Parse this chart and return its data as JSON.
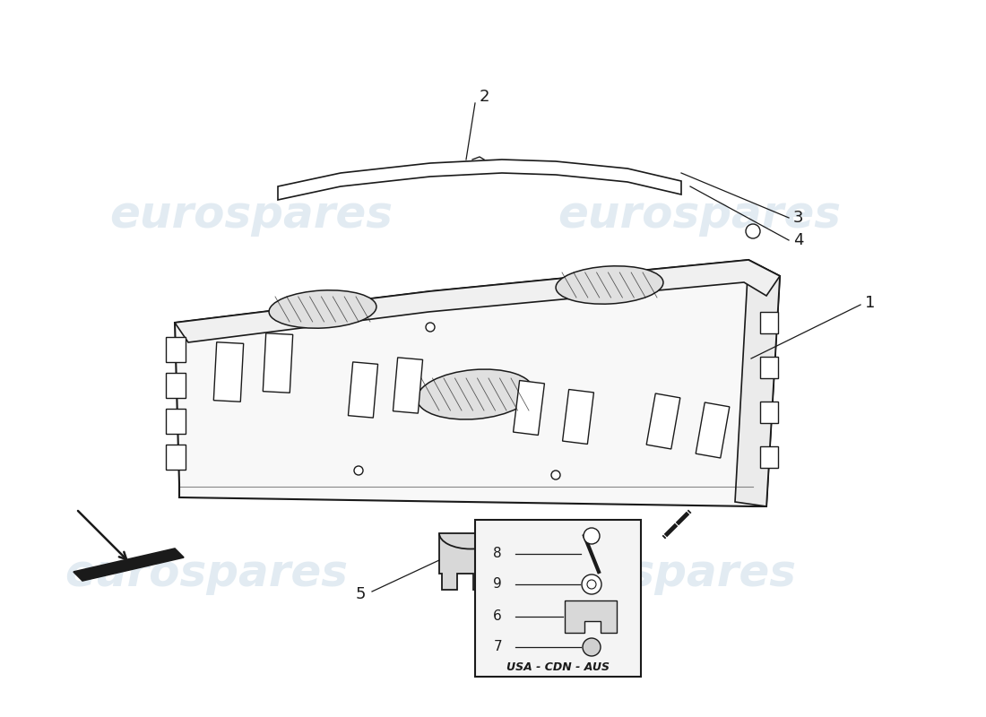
{
  "bg_color": "#ffffff",
  "watermark_text": "eurospares",
  "watermark_color": "#b8cfe0",
  "line_color": "#1a1a1a",
  "label_color": "#1a1a1a",
  "usa_cdn_aus_label": "USA - CDN - AUS",
  "shelf_face_color": "#f8f8f8",
  "shelf_top_color": "#f0f0f0",
  "inset_bg": "#f4f4f4"
}
